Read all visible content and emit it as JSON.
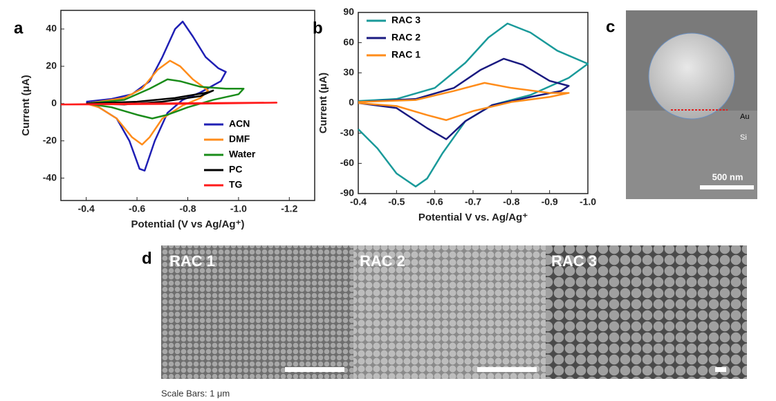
{
  "chart_data": [
    {
      "type": "line",
      "panel": "a",
      "ylabel": "Current (μA)",
      "xlabel": "Potential (V vs Ag/Ag⁺)",
      "xlim": [
        -0.3,
        -1.3
      ],
      "ylim": [
        -52,
        50
      ],
      "xticks": [
        -0.4,
        -0.6,
        -0.8,
        {
          "value": -1,
          "label": "-1.0"
        },
        -1.2
      ],
      "yticks": [
        -40,
        -20,
        0,
        20,
        40
      ],
      "legend": "lower right",
      "series": [
        {
          "name": "ACN",
          "color": "#1f1fb4",
          "x": [
            -0.4,
            -0.5,
            -0.58,
            -0.65,
            -0.7,
            -0.75,
            -0.78,
            -0.82,
            -0.87,
            -0.92,
            -0.95,
            -0.93,
            -0.85,
            -0.78,
            -0.72,
            -0.67,
            -0.63,
            -0.61,
            -0.57,
            -0.52,
            -0.45,
            -0.4
          ],
          "values": [
            1,
            2.5,
            5,
            12,
            25,
            40,
            44,
            36,
            25,
            19,
            17,
            12,
            6,
            2,
            -5,
            -20,
            -36,
            -35,
            -20,
            -8,
            -2,
            1
          ]
        },
        {
          "name": "DMF",
          "color": "#ff8c1a",
          "x": [
            -0.4,
            -0.55,
            -0.62,
            -0.68,
            -0.73,
            -0.77,
            -0.82,
            -0.88,
            -0.85,
            -0.78,
            -0.7,
            -0.65,
            -0.62,
            -0.58,
            -0.52,
            -0.45,
            -0.4
          ],
          "values": [
            0,
            3,
            8,
            18,
            23,
            20,
            13,
            7,
            3,
            -1,
            -8,
            -18,
            -22,
            -18,
            -8,
            -2,
            0
          ]
        },
        {
          "name": "Water",
          "color": "#1a8c1a",
          "x": [
            -0.4,
            -0.55,
            -0.65,
            -0.72,
            -0.77,
            -0.85,
            -0.95,
            -1.02,
            -1.0,
            -0.9,
            -0.8,
            -0.72,
            -0.66,
            -0.6,
            -0.5,
            -0.4
          ],
          "values": [
            0,
            2,
            8,
            13,
            12,
            9,
            8,
            8,
            5,
            2,
            -2,
            -6,
            -8,
            -6,
            -2,
            0
          ]
        },
        {
          "name": "PC",
          "color": "#000000",
          "x": [
            -0.4,
            -0.6,
            -0.75,
            -0.88,
            -0.9,
            -0.85,
            -0.7,
            -0.55,
            -0.4
          ],
          "values": [
            0,
            1,
            3,
            6,
            7,
            4,
            1,
            -0.5,
            0
          ]
        },
        {
          "name": "TG",
          "color": "#ff1a1a",
          "x": [
            -0.3,
            -0.6,
            -0.9,
            -1.15,
            -0.9,
            -0.6,
            -0.3
          ],
          "values": [
            -0.5,
            0,
            0.3,
            0.5,
            0,
            -0.3,
            -0.5
          ]
        }
      ]
    },
    {
      "type": "line",
      "panel": "b",
      "ylabel": "Current (μA)",
      "xlabel": "Potential V vs. Ag/Ag⁺",
      "xlim": [
        -0.4,
        -1
      ],
      "ylim": [
        -90,
        90
      ],
      "xticks": [
        -0.4,
        -0.5,
        -0.6,
        -0.7,
        -0.8,
        -0.9,
        {
          "value": -1,
          "label": "-1.0"
        }
      ],
      "yticks": [
        -90,
        -60,
        -30,
        0,
        30,
        60,
        90
      ],
      "legend": "upper left",
      "series": [
        {
          "name": "RAC 3",
          "color": "#1a9a9a",
          "x": [
            -0.4,
            -0.5,
            -0.6,
            -0.68,
            -0.74,
            -0.79,
            -0.85,
            -0.92,
            -1.0,
            -0.95,
            -0.85,
            -0.75,
            -0.68,
            -0.62,
            -0.58,
            -0.55,
            -0.5,
            -0.45,
            -0.4
          ],
          "values": [
            2,
            4,
            15,
            40,
            65,
            79,
            70,
            52,
            39,
            25,
            8,
            -2,
            -18,
            -50,
            -75,
            -83,
            -70,
            -45,
            -26
          ]
        },
        {
          "name": "RAC 2",
          "color": "#1a1a80",
          "x": [
            -0.4,
            -0.55,
            -0.65,
            -0.72,
            -0.78,
            -0.83,
            -0.9,
            -0.95,
            -0.93,
            -0.85,
            -0.75,
            -0.68,
            -0.63,
            -0.58,
            -0.5,
            -0.4
          ],
          "values": [
            1,
            4,
            15,
            33,
            44,
            38,
            22,
            17,
            12,
            6,
            -2,
            -18,
            -36,
            -25,
            -5,
            0
          ]
        },
        {
          "name": "RAC 1",
          "color": "#ff8c1a",
          "x": [
            -0.4,
            -0.55,
            -0.65,
            -0.73,
            -0.8,
            -0.9,
            -0.95,
            -0.9,
            -0.8,
            -0.7,
            -0.63,
            -0.58,
            -0.5,
            -0.4
          ],
          "values": [
            1,
            3,
            12,
            20,
            15,
            10,
            10,
            6,
            1,
            -8,
            -17,
            -12,
            -3,
            0
          ]
        }
      ]
    }
  ],
  "panel_c": {
    "panel": "c",
    "labels": [
      "Au",
      "Si"
    ],
    "scale": "500 nm"
  },
  "panel_d": {
    "panel": "d",
    "labels": [
      "RAC 1",
      "RAC 2",
      "RAC 3"
    ],
    "caption": "Scale Bars: 1 μm"
  }
}
